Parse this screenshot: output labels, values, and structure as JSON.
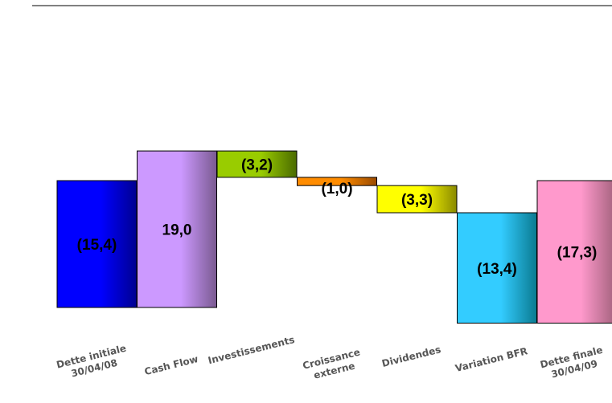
{
  "chart_data": {
    "type": "waterfall",
    "title": "",
    "xlabel": "",
    "ylabel": "",
    "ylim": [
      -17.3,
      19.0
    ],
    "grid": false,
    "legend": "none",
    "categories": [
      {
        "lines": [
          "Dette initiale",
          "30/04/08"
        ]
      },
      {
        "lines": [
          "Cash Flow"
        ]
      },
      {
        "lines": [
          "Investissements"
        ]
      },
      {
        "lines": [
          "Croissance",
          "externe"
        ]
      },
      {
        "lines": [
          "Dividendes"
        ]
      },
      {
        "lines": [
          "Variation BFR"
        ]
      },
      {
        "lines": [
          "Dette finale",
          "30/04/09"
        ]
      }
    ],
    "steps": [
      {
        "kind": "total",
        "value": -15.4,
        "label": "(15,4)",
        "colors": [
          "#000090",
          "#0000FF"
        ]
      },
      {
        "kind": "delta",
        "value": 19.0,
        "label": "19,0",
        "colors": [
          "#7A5A90",
          "#CC99FF"
        ]
      },
      {
        "kind": "delta",
        "value": -3.2,
        "label": "(3,2)",
        "colors": [
          "#4A6A00",
          "#99CC00"
        ]
      },
      {
        "kind": "delta",
        "value": -1.0,
        "label": "(1,0)",
        "colors": [
          "#9A4A00",
          "#FF8C00"
        ]
      },
      {
        "kind": "delta",
        "value": -3.3,
        "label": "(3,3)",
        "colors": [
          "#8A8A00",
          "#FFFF00"
        ]
      },
      {
        "kind": "delta",
        "value": -13.4,
        "label": "(13,4)",
        "colors": [
          "#0A7A90",
          "#33CCFF"
        ]
      },
      {
        "kind": "total",
        "value": -17.3,
        "label": "(17,3)",
        "colors": [
          "#A0607A",
          "#FF99CC"
        ]
      }
    ]
  }
}
